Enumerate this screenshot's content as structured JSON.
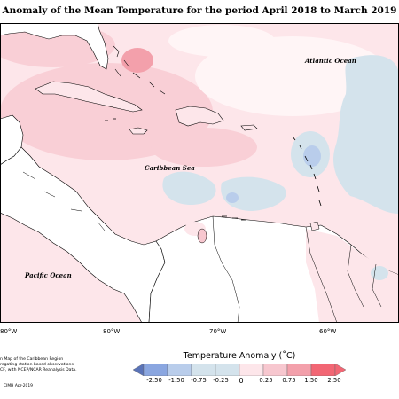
{
  "title": "Anomaly of the Mean Temperature for the period April 2018 to March 2019",
  "map_labels": {
    "atlantic": "Atlantic Ocean",
    "caribbean": "Caribbean Sea",
    "pacific": "Pacific Ocean"
  },
  "longitude_labels": [
    "80°W",
    "80°W",
    "70°W",
    "60°W"
  ],
  "note_lines": [
    "n Map of the Caribbean Region",
    "regating station based observations,",
    "CF, with NCEP/NCAR Reanalysis Data."
  ],
  "credit": "CIMH Apr-2019",
  "legend": {
    "title": "Temperature Anomaly (˚C)",
    "ticks": [
      "-2.50",
      "-1.50",
      "-0.75",
      "-0.25",
      "0",
      "0.25",
      "0.75",
      "1.50",
      "2.50"
    ],
    "colors": [
      "#5a73b8",
      "#8aa6e0",
      "#b9cdeb",
      "#d4e3ec",
      "#ffffff",
      "#fde6ea",
      "#f7c7cf",
      "#f3a0ab",
      "#f26674"
    ]
  }
}
